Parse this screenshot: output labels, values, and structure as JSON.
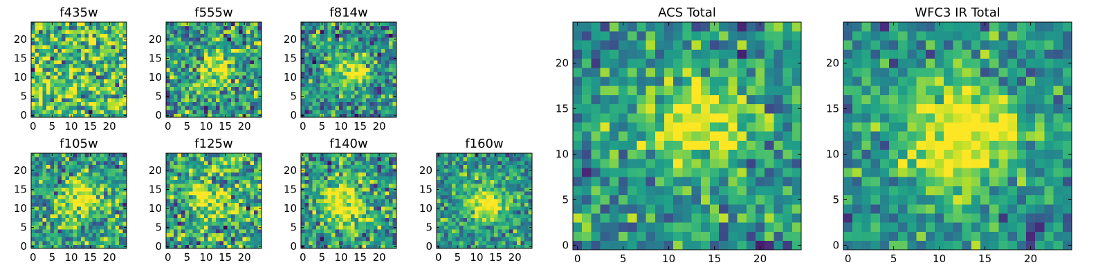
{
  "chart_data": [
    {
      "type": "heatmap",
      "title": "f435w",
      "grid_size": 25,
      "xticks": [
        "0",
        "5",
        "10",
        "15",
        "20"
      ],
      "yticks": [
        "0",
        "5",
        "10",
        "15",
        "20"
      ],
      "colormap": "viridis",
      "blob": {
        "cx": 12,
        "cy": 12,
        "sigma": 4,
        "amp": 0.0
      },
      "noise": 0.9,
      "bias": 0.15,
      "seed": 11
    },
    {
      "type": "heatmap",
      "title": "f555w",
      "grid_size": 25,
      "xticks": [
        "0",
        "5",
        "10",
        "15",
        "20"
      ],
      "yticks": [
        "0",
        "5",
        "10",
        "15",
        "20"
      ],
      "colormap": "viridis",
      "blob": {
        "cx": 13,
        "cy": 12,
        "sigma": 3.2,
        "amp": 0.45
      },
      "noise": 0.75,
      "bias": 0.0,
      "seed": 22
    },
    {
      "type": "heatmap",
      "title": "f814w",
      "grid_size": 25,
      "xticks": [
        "0",
        "5",
        "10",
        "15",
        "20"
      ],
      "yticks": [
        "0",
        "5",
        "10",
        "15",
        "20"
      ],
      "colormap": "viridis",
      "blob": {
        "cx": 13,
        "cy": 12,
        "sigma": 3.0,
        "amp": 0.55
      },
      "noise": 0.7,
      "bias": -0.05,
      "seed": 33
    },
    {
      "type": "heatmap",
      "title": "f105w",
      "grid_size": 25,
      "xticks": [
        "0",
        "5",
        "10",
        "15",
        "20"
      ],
      "yticks": [
        "0",
        "5",
        "10",
        "15",
        "20"
      ],
      "colormap": "viridis",
      "blob": {
        "cx": 13,
        "cy": 13,
        "sigma": 3.8,
        "amp": 0.5
      },
      "noise": 0.7,
      "bias": 0.0,
      "seed": 44
    },
    {
      "type": "heatmap",
      "title": "f125w",
      "grid_size": 25,
      "xticks": [
        "0",
        "5",
        "10",
        "15",
        "20"
      ],
      "yticks": [
        "0",
        "5",
        "10",
        "15",
        "20"
      ],
      "colormap": "viridis",
      "blob": {
        "cx": 12,
        "cy": 12,
        "sigma": 3.5,
        "amp": 0.35
      },
      "noise": 0.85,
      "bias": 0.05,
      "seed": 55
    },
    {
      "type": "heatmap",
      "title": "f140w",
      "grid_size": 25,
      "xticks": [
        "0",
        "5",
        "10",
        "15",
        "20"
      ],
      "yticks": [
        "0",
        "5",
        "10",
        "15",
        "20"
      ],
      "colormap": "viridis",
      "blob": {
        "cx": 11,
        "cy": 11,
        "sigma": 4.0,
        "amp": 0.55
      },
      "noise": 0.7,
      "bias": 0.0,
      "seed": 66
    },
    {
      "type": "heatmap",
      "title": "f160w",
      "grid_size": 25,
      "xticks": [
        "0",
        "5",
        "10",
        "15",
        "20"
      ],
      "yticks": [
        "0",
        "5",
        "10",
        "15",
        "20"
      ],
      "colormap": "viridis",
      "blob": {
        "cx": 12,
        "cy": 12,
        "sigma": 3.6,
        "amp": 0.6
      },
      "noise": 0.6,
      "bias": -0.05,
      "seed": 77
    },
    {
      "type": "heatmap",
      "title": "ACS Total",
      "grid_size": 25,
      "xticks": [
        "0",
        "5",
        "10",
        "15",
        "20"
      ],
      "yticks": [
        "0",
        "5",
        "10",
        "15",
        "20"
      ],
      "colormap": "viridis",
      "blob": {
        "cx": 13,
        "cy": 13,
        "sigma": 3.8,
        "amp": 0.55
      },
      "noise": 0.6,
      "bias": -0.05,
      "seed": 88
    },
    {
      "type": "heatmap",
      "title": "WFC3 IR Total",
      "grid_size": 25,
      "xticks": [
        "0",
        "5",
        "10",
        "15",
        "20"
      ],
      "yticks": [
        "0",
        "5",
        "10",
        "15",
        "20"
      ],
      "colormap": "viridis",
      "blob": {
        "cx": 12,
        "cy": 12,
        "sigma": 4.5,
        "amp": 0.6
      },
      "noise": 0.55,
      "bias": -0.05,
      "seed": 99
    }
  ]
}
